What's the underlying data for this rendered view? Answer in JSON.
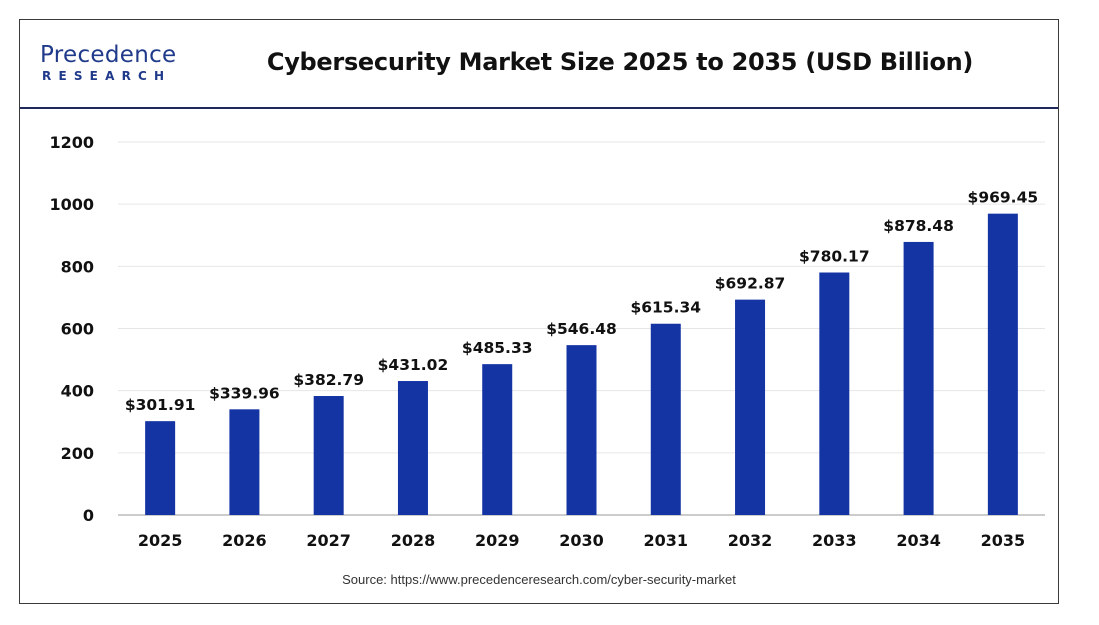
{
  "logo": {
    "top_text": "Precedence",
    "bottom_text": "RESEARCH"
  },
  "source_text": "Source: https://www.precedenceresearch.com/cyber-security-market",
  "colors": {
    "bar": "#1434a4",
    "brand": "#1f3a8a",
    "header_rule": "#1f2a5c",
    "grid": "#e6e6e6"
  },
  "chart_data": {
    "type": "bar",
    "title": "Cybersecurity Market Size 2025 to 2035 (USD Billion)",
    "xlabel": "",
    "ylabel": "",
    "categories": [
      "2025",
      "2026",
      "2027",
      "2028",
      "2029",
      "2030",
      "2031",
      "2032",
      "2033",
      "2034",
      "2035"
    ],
    "values": [
      301.91,
      339.96,
      382.79,
      431.02,
      485.33,
      546.48,
      615.34,
      692.87,
      780.17,
      878.48,
      969.45
    ],
    "data_labels": [
      "$301.91",
      "$339.96",
      "$382.79",
      "$431.02",
      "$485.33",
      "$546.48",
      "$615.34",
      "$692.87",
      "$780.17",
      "$878.48",
      "$969.45"
    ],
    "ylim": [
      0,
      1200
    ],
    "yticks": [
      0,
      200,
      400,
      600,
      800,
      1000,
      1200
    ],
    "grid": true,
    "legend": "none"
  }
}
